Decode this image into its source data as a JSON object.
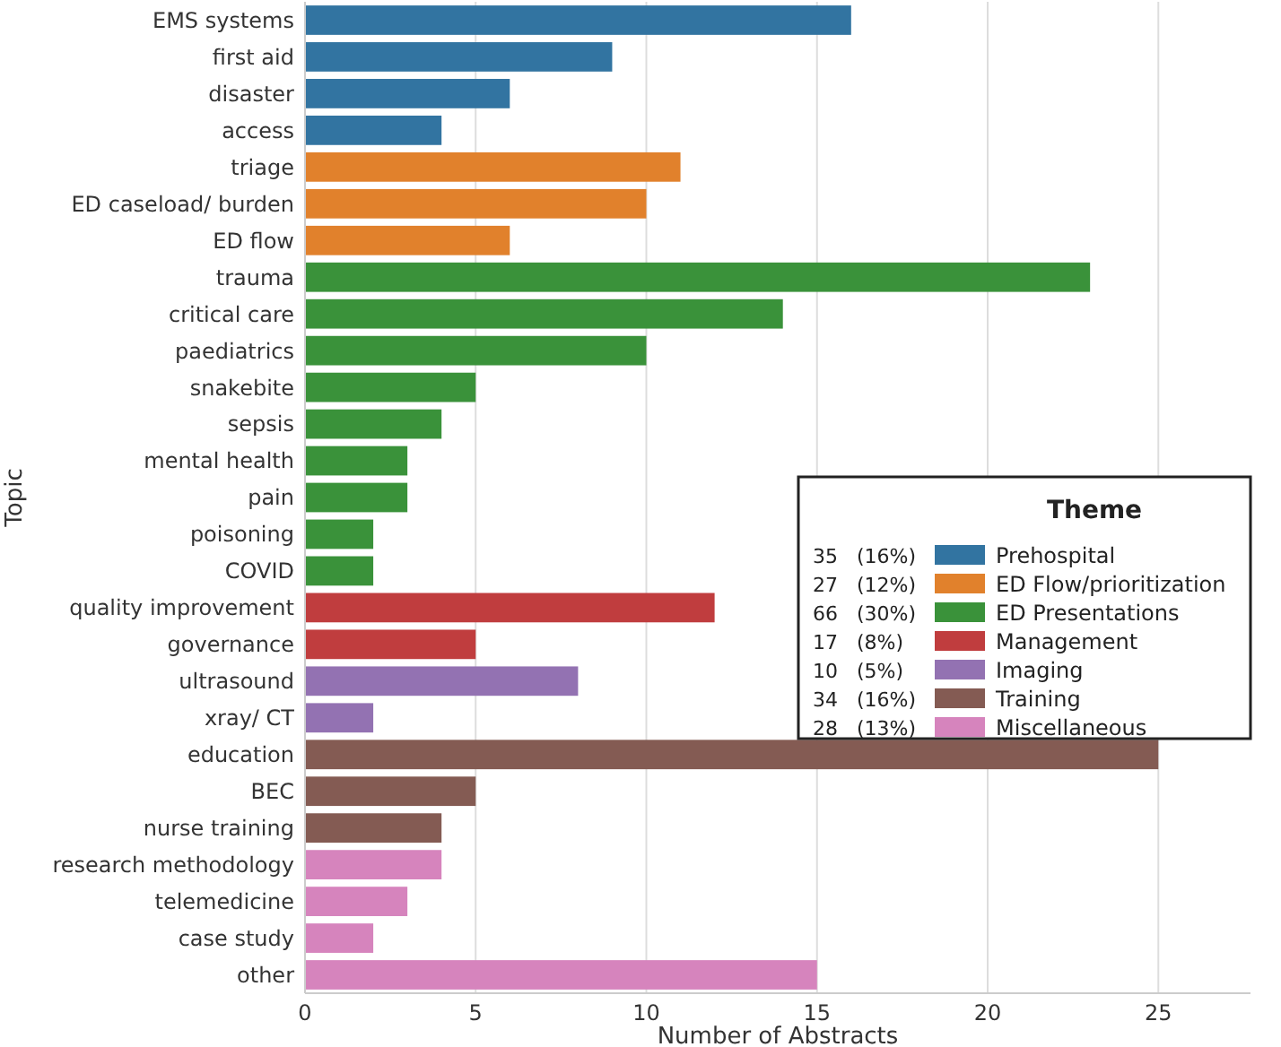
{
  "chart_data": {
    "type": "bar",
    "orientation": "horizontal",
    "xlabel": "Number of Abstracts",
    "ylabel": "Topic",
    "legend_title": "Theme",
    "legend": "right",
    "grid": "x",
    "categories": [
      "EMS systems",
      "first aid",
      "disaster",
      "access",
      "triage",
      "ED caseload/ burden",
      "ED flow",
      "trauma",
      "critical care",
      "paediatrics",
      "snakebite",
      "sepsis",
      "mental health",
      "pain",
      "poisoning",
      "COVID",
      "quality improvement",
      "governance",
      "ultrasound",
      "xray/ CT",
      "education",
      "BEC",
      "nurse training",
      "research methodology",
      "telemedicine",
      "case study",
      "other"
    ],
    "xlim": [
      0,
      27.7
    ],
    "xticks": [
      0,
      5,
      10,
      15,
      20,
      25
    ],
    "series": [
      {
        "name": "Prehospital",
        "color": "#3274a1",
        "values": [
          16,
          9,
          6,
          4,
          null,
          null,
          null,
          null,
          null,
          null,
          null,
          null,
          null,
          null,
          null,
          null,
          null,
          null,
          null,
          null,
          null,
          null,
          null,
          null,
          null,
          null,
          null
        ]
      },
      {
        "name": "ED Flow/prioritization",
        "color": "#e1812c",
        "values": [
          null,
          null,
          null,
          null,
          11,
          10,
          6,
          null,
          null,
          null,
          null,
          null,
          null,
          null,
          null,
          null,
          null,
          null,
          null,
          null,
          null,
          null,
          null,
          null,
          null,
          null,
          null
        ]
      },
      {
        "name": "ED Presentations",
        "color": "#3a923a",
        "values": [
          null,
          null,
          null,
          null,
          null,
          null,
          null,
          23,
          14,
          10,
          5,
          4,
          3,
          3,
          2,
          2,
          null,
          null,
          null,
          null,
          null,
          null,
          null,
          null,
          null,
          null,
          null
        ]
      },
      {
        "name": "Management",
        "color": "#c03d3e",
        "values": [
          null,
          null,
          null,
          null,
          null,
          null,
          null,
          null,
          null,
          null,
          null,
          null,
          null,
          null,
          null,
          null,
          12,
          5,
          null,
          null,
          null,
          null,
          null,
          null,
          null,
          null,
          null
        ]
      },
      {
        "name": "Imaging",
        "color": "#9372b2",
        "values": [
          null,
          null,
          null,
          null,
          null,
          null,
          null,
          null,
          null,
          null,
          null,
          null,
          null,
          null,
          null,
          null,
          null,
          null,
          8,
          2,
          null,
          null,
          null,
          null,
          null,
          null,
          null
        ]
      },
      {
        "name": "Training",
        "color": "#845b53",
        "values": [
          null,
          null,
          null,
          null,
          null,
          null,
          null,
          null,
          null,
          null,
          null,
          null,
          null,
          null,
          null,
          null,
          null,
          null,
          null,
          null,
          25,
          5,
          4,
          null,
          null,
          null,
          null
        ]
      },
      {
        "name": "Miscellaneous",
        "color": "#d684bd",
        "values": [
          null,
          null,
          null,
          null,
          null,
          null,
          null,
          null,
          null,
          null,
          null,
          null,
          null,
          null,
          null,
          null,
          null,
          null,
          null,
          null,
          null,
          null,
          null,
          4,
          3,
          2,
          15
        ]
      }
    ],
    "annotations": [
      "35   (16%)",
      "27   (12%)",
      "66   (30%)",
      "17   (8%)",
      "10   (5%)",
      "34   (16%)",
      "28   (13%)"
    ]
  }
}
